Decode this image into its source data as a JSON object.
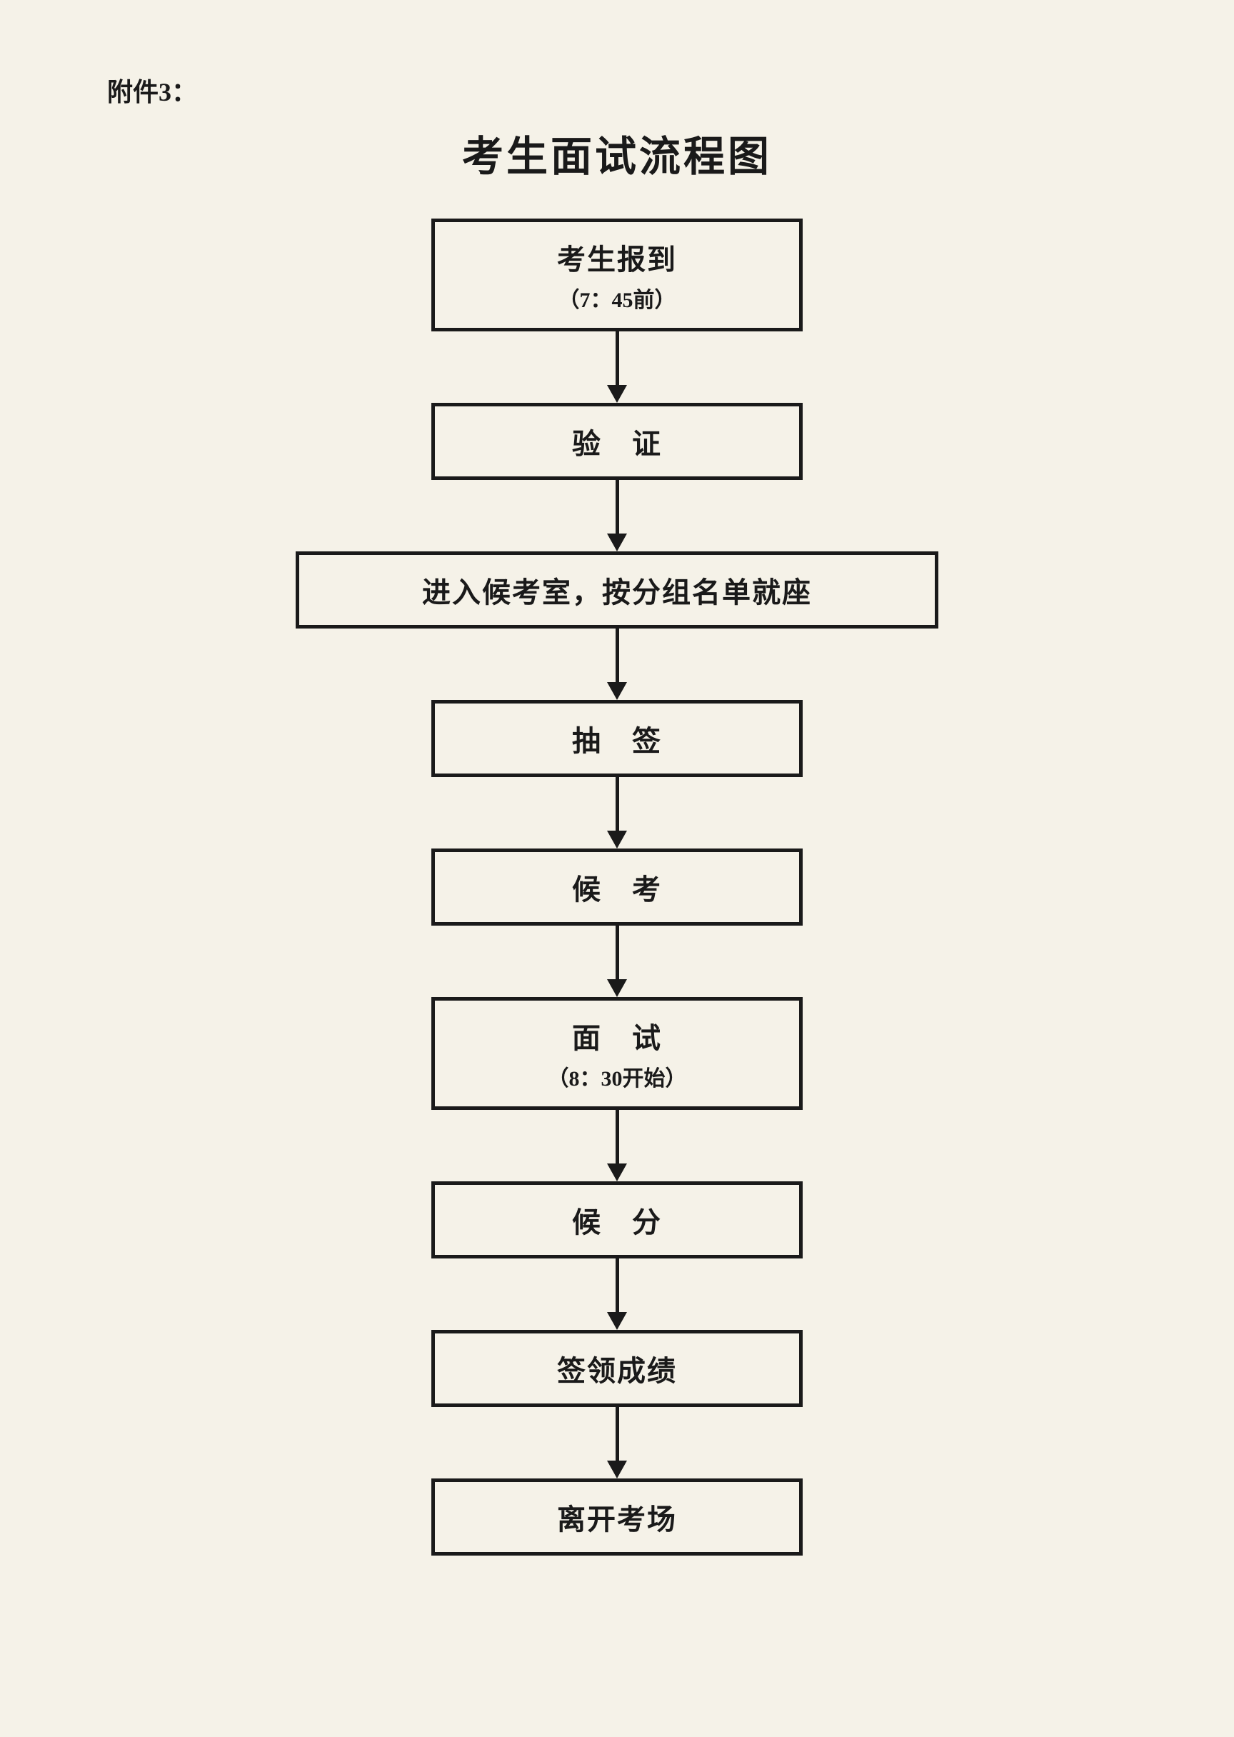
{
  "document": {
    "attachment_label": "附件3：",
    "title": "考生面试流程图",
    "background_color": "#f5f2e8",
    "text_color": "#1a1a1a",
    "border_color": "#1a1a1a"
  },
  "flowchart": {
    "type": "flowchart",
    "direction": "vertical",
    "border_width": 5,
    "arrow_color": "#1a1a1a",
    "nodes": [
      {
        "id": "step1",
        "main_text": "考生报到",
        "sub_text": "（7：45前）",
        "width": "narrow",
        "has_subtitle": true
      },
      {
        "id": "step2",
        "main_text": "验　证",
        "sub_text": "",
        "width": "narrow",
        "has_subtitle": false
      },
      {
        "id": "step3",
        "main_text": "进入候考室，按分组名单就座",
        "sub_text": "",
        "width": "wide",
        "has_subtitle": false
      },
      {
        "id": "step4",
        "main_text": "抽　签",
        "sub_text": "",
        "width": "narrow",
        "has_subtitle": false
      },
      {
        "id": "step5",
        "main_text": "候　考",
        "sub_text": "",
        "width": "narrow",
        "has_subtitle": false
      },
      {
        "id": "step6",
        "main_text": "面　试",
        "sub_text": "（8：30开始）",
        "width": "narrow",
        "has_subtitle": true
      },
      {
        "id": "step7",
        "main_text": "候　分",
        "sub_text": "",
        "width": "narrow",
        "has_subtitle": false
      },
      {
        "id": "step8",
        "main_text": "签领成绩",
        "sub_text": "",
        "width": "narrow",
        "has_subtitle": false
      },
      {
        "id": "step9",
        "main_text": "离开考场",
        "sub_text": "",
        "width": "narrow",
        "has_subtitle": false
      }
    ]
  }
}
